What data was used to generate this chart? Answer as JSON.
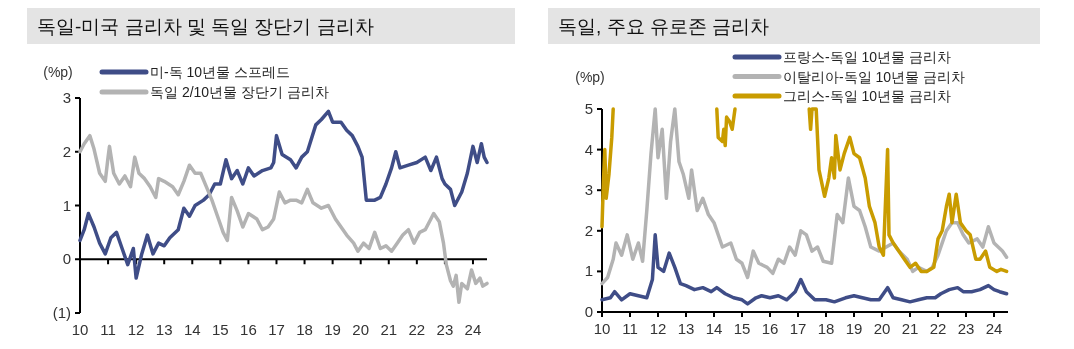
{
  "chart_data": [
    {
      "type": "line",
      "title": "독일-미국 금리차 및 독일 장단기 금리차",
      "ylabel": "(%p)",
      "legend": "top",
      "xlim": [
        2010,
        2024.5
      ],
      "xticks": [
        {
          "value": 2010,
          "label": "10"
        },
        {
          "value": 2011,
          "label": "11"
        },
        {
          "value": 2012,
          "label": "12"
        },
        {
          "value": 2013,
          "label": "13"
        },
        {
          "value": 2014,
          "label": "14"
        },
        {
          "value": 2015,
          "label": "15"
        },
        {
          "value": 2016,
          "label": "16"
        },
        {
          "value": 2017,
          "label": "17"
        },
        {
          "value": 2018,
          "label": "18"
        },
        {
          "value": 2019,
          "label": "19"
        },
        {
          "value": 2020,
          "label": "20"
        },
        {
          "value": 2021,
          "label": "21"
        },
        {
          "value": 2022,
          "label": "22"
        },
        {
          "value": 2023,
          "label": "23"
        },
        {
          "value": 2024,
          "label": "24"
        }
      ],
      "ylim": [
        -1,
        3
      ],
      "yticks": [
        {
          "value": -1,
          "label": "(1)"
        },
        0,
        1,
        2,
        3
      ],
      "series": [
        {
          "name": "미-독 10년물 스프레드",
          "color": "#3f4d87",
          "x": [
            2010.0,
            2010.15,
            2010.3,
            2010.5,
            2010.7,
            2010.9,
            2011.1,
            2011.3,
            2011.5,
            2011.7,
            2011.9,
            2012.0,
            2012.2,
            2012.4,
            2012.6,
            2012.8,
            2013.0,
            2013.2,
            2013.5,
            2013.7,
            2013.9,
            2014.1,
            2014.4,
            2014.6,
            2014.8,
            2015.0,
            2015.2,
            2015.4,
            2015.6,
            2015.8,
            2016.0,
            2016.2,
            2016.5,
            2016.8,
            2016.9,
            2017.0,
            2017.2,
            2017.5,
            2017.7,
            2017.9,
            2018.1,
            2018.4,
            2018.6,
            2018.85,
            2019.0,
            2019.3,
            2019.5,
            2019.7,
            2019.9,
            2020.05,
            2020.2,
            2020.5,
            2020.7,
            2020.9,
            2021.1,
            2021.25,
            2021.4,
            2021.7,
            2022.0,
            2022.3,
            2022.5,
            2022.7,
            2022.9,
            2023.0,
            2023.2,
            2023.35,
            2023.6,
            2023.8,
            2024.0,
            2024.15,
            2024.3,
            2024.4,
            2024.5
          ],
          "values": [
            0.35,
            0.55,
            0.85,
            0.6,
            0.3,
            0.1,
            0.4,
            0.5,
            0.2,
            -0.1,
            0.2,
            -0.35,
            0.1,
            0.45,
            0.1,
            0.3,
            0.25,
            0.4,
            0.55,
            0.95,
            0.8,
            1.0,
            1.1,
            1.2,
            1.4,
            1.4,
            1.85,
            1.5,
            1.65,
            1.4,
            1.7,
            1.55,
            1.65,
            1.7,
            1.8,
            2.3,
            1.95,
            1.85,
            1.7,
            1.9,
            2.0,
            2.5,
            2.6,
            2.75,
            2.55,
            2.55,
            2.4,
            2.3,
            2.1,
            1.9,
            1.1,
            1.1,
            1.15,
            1.4,
            1.7,
            2.0,
            1.7,
            1.75,
            1.8,
            1.9,
            1.65,
            1.9,
            1.5,
            1.4,
            1.3,
            1.0,
            1.25,
            1.6,
            2.1,
            1.8,
            2.15,
            1.9,
            1.8
          ]
        },
        {
          "name": "독일 2/10년물 장단기 금리차",
          "color": "#b3b3b3",
          "x": [
            2010.0,
            2010.15,
            2010.35,
            2010.5,
            2010.7,
            2010.9,
            2011.0,
            2011.05,
            2011.2,
            2011.4,
            2011.6,
            2011.8,
            2011.95,
            2012.1,
            2012.3,
            2012.5,
            2012.7,
            2012.8,
            2013.0,
            2013.3,
            2013.5,
            2013.7,
            2013.9,
            2014.1,
            2014.3,
            2014.5,
            2014.7,
            2014.9,
            2015.1,
            2015.25,
            2015.4,
            2015.6,
            2015.8,
            2016.0,
            2016.3,
            2016.5,
            2016.7,
            2016.9,
            2017.1,
            2017.3,
            2017.5,
            2017.7,
            2017.9,
            2018.1,
            2018.3,
            2018.6,
            2018.85,
            2019.1,
            2019.3,
            2019.5,
            2019.75,
            2019.9,
            2020.1,
            2020.3,
            2020.5,
            2020.7,
            2020.9,
            2021.1,
            2021.3,
            2021.5,
            2021.7,
            2021.9,
            2022.1,
            2022.3,
            2022.5,
            2022.6,
            2022.8,
            2022.95,
            2023.05,
            2023.2,
            2023.3,
            2023.4,
            2023.5,
            2023.6,
            2023.8,
            2023.95,
            2024.1,
            2024.25,
            2024.35,
            2024.5
          ],
          "values": [
            2.0,
            2.15,
            2.3,
            2.05,
            1.6,
            1.45,
            1.9,
            2.1,
            1.6,
            1.4,
            1.55,
            1.35,
            1.9,
            1.6,
            1.5,
            1.35,
            1.15,
            1.5,
            1.45,
            1.35,
            1.2,
            1.45,
            1.75,
            1.6,
            1.6,
            1.35,
            1.1,
            0.8,
            0.5,
            0.35,
            1.15,
            0.9,
            0.6,
            0.85,
            0.75,
            0.55,
            0.6,
            0.75,
            1.25,
            1.05,
            1.1,
            1.1,
            1.05,
            1.3,
            1.05,
            0.95,
            1.0,
            0.75,
            0.6,
            0.45,
            0.3,
            0.15,
            0.3,
            0.2,
            0.5,
            0.2,
            0.25,
            0.15,
            0.3,
            0.45,
            0.55,
            0.3,
            0.5,
            0.55,
            0.75,
            0.85,
            0.7,
            0.3,
            -0.1,
            -0.4,
            -0.5,
            -0.3,
            -0.8,
            -0.45,
            -0.55,
            -0.2,
            -0.45,
            -0.35,
            -0.5,
            -0.45
          ]
        }
      ]
    },
    {
      "type": "line",
      "title": "독일, 주요 유로존 금리차",
      "ylabel": "(%p)",
      "legend": "top right",
      "xlim": [
        2010,
        2024.5
      ],
      "xticks": [
        {
          "value": 2010,
          "label": "10"
        },
        {
          "value": 2011,
          "label": "11"
        },
        {
          "value": 2012,
          "label": "12"
        },
        {
          "value": 2013,
          "label": "13"
        },
        {
          "value": 2014,
          "label": "14"
        },
        {
          "value": 2015,
          "label": "15"
        },
        {
          "value": 2016,
          "label": "16"
        },
        {
          "value": 2017,
          "label": "17"
        },
        {
          "value": 2018,
          "label": "18"
        },
        {
          "value": 2019,
          "label": "19"
        },
        {
          "value": 2020,
          "label": "20"
        },
        {
          "value": 2021,
          "label": "21"
        },
        {
          "value": 2022,
          "label": "22"
        },
        {
          "value": 2023,
          "label": "23"
        },
        {
          "value": 2024,
          "label": "24"
        }
      ],
      "ylim": [
        0,
        5
      ],
      "yticks": [
        0,
        1,
        2,
        3,
        4,
        5
      ],
      "series": [
        {
          "name": "프랑스-독일 10년물 금리차",
          "color": "#3f4d87",
          "x": [
            2010.0,
            2010.3,
            2010.45,
            2010.7,
            2011.0,
            2011.3,
            2011.6,
            2011.8,
            2011.9,
            2012.0,
            2012.2,
            2012.4,
            2012.6,
            2012.8,
            2013.0,
            2013.3,
            2013.6,
            2013.9,
            2014.1,
            2014.4,
            2014.7,
            2015.0,
            2015.2,
            2015.5,
            2015.7,
            2016.0,
            2016.3,
            2016.6,
            2016.9,
            2017.1,
            2017.3,
            2017.6,
            2018.0,
            2018.3,
            2018.7,
            2019.0,
            2019.3,
            2019.6,
            2019.9,
            2020.2,
            2020.4,
            2020.7,
            2021.0,
            2021.3,
            2021.6,
            2021.9,
            2022.1,
            2022.4,
            2022.7,
            2022.9,
            2023.2,
            2023.5,
            2023.8,
            2024.0,
            2024.2,
            2024.45
          ],
          "values": [
            0.3,
            0.35,
            0.5,
            0.3,
            0.45,
            0.4,
            0.35,
            0.8,
            1.9,
            1.1,
            1.0,
            1.45,
            1.1,
            0.7,
            0.65,
            0.55,
            0.6,
            0.5,
            0.6,
            0.45,
            0.35,
            0.3,
            0.2,
            0.35,
            0.4,
            0.35,
            0.4,
            0.3,
            0.5,
            0.8,
            0.5,
            0.3,
            0.3,
            0.25,
            0.35,
            0.4,
            0.35,
            0.3,
            0.3,
            0.6,
            0.35,
            0.3,
            0.25,
            0.3,
            0.35,
            0.35,
            0.45,
            0.55,
            0.6,
            0.5,
            0.5,
            0.55,
            0.65,
            0.55,
            0.5,
            0.45
          ]
        },
        {
          "name": "이탈리아-독일 10년물 금리차",
          "color": "#b3b3b3",
          "x": [
            2010.0,
            2010.2,
            2010.4,
            2010.5,
            2010.7,
            2010.9,
            2011.1,
            2011.3,
            2011.45,
            2011.6,
            2011.75,
            2011.9,
            2012.0,
            2012.15,
            2012.3,
            2012.45,
            2012.6,
            2012.75,
            2012.9,
            2013.1,
            2013.2,
            2013.4,
            2013.6,
            2013.8,
            2014.0,
            2014.3,
            2014.6,
            2014.8,
            2015.0,
            2015.2,
            2015.4,
            2015.6,
            2015.9,
            2016.1,
            2016.3,
            2016.5,
            2016.7,
            2016.9,
            2017.1,
            2017.3,
            2017.5,
            2017.7,
            2017.9,
            2018.2,
            2018.4,
            2018.6,
            2018.8,
            2019.0,
            2019.2,
            2019.4,
            2019.6,
            2019.9,
            2020.4,
            2020.6,
            2020.9,
            2021.1,
            2021.3,
            2021.6,
            2021.8,
            2022.0,
            2022.3,
            2022.5,
            2022.7,
            2022.9,
            2023.1,
            2023.4,
            2023.6,
            2023.8,
            2024.0,
            2024.3,
            2024.45
          ],
          "values": [
            0.7,
            0.85,
            1.3,
            1.7,
            1.4,
            1.9,
            1.3,
            1.7,
            1.25,
            2.5,
            3.9,
            5.0,
            3.8,
            4.5,
            2.8,
            4.2,
            5.0,
            3.7,
            3.4,
            2.8,
            3.5,
            2.5,
            2.8,
            2.4,
            2.2,
            1.6,
            1.7,
            1.3,
            1.2,
            0.85,
            1.5,
            1.2,
            1.1,
            0.95,
            1.3,
            1.2,
            1.6,
            1.4,
            2.0,
            1.9,
            1.5,
            1.6,
            1.25,
            1.2,
            2.4,
            2.2,
            3.3,
            2.6,
            2.5,
            2.1,
            1.6,
            1.5,
            1.7,
            1.5,
            1.3,
            1.0,
            1.1,
            1.0,
            1.1,
            1.4,
            2.0,
            2.2,
            2.2,
            1.9,
            1.7,
            1.8,
            1.6,
            2.1,
            1.7,
            1.5,
            1.35
          ]
        },
        {
          "name": "그리스-독일 10년물 금리차",
          "color": "#c99c00",
          "x": [
            2010.0,
            2010.05,
            2010.1,
            2010.15,
            2010.25,
            2010.35,
            2010.4
          ],
          "values": [
            2.1,
            3.2,
            4.0,
            2.8,
            3.4,
            4.3,
            5.0
          ]
        },
        {
          "color": "#c99c00",
          "x": [
            2014.1,
            2014.15,
            2014.3,
            2014.35,
            2014.4,
            2014.45,
            2014.55,
            2014.65,
            2014.75
          ],
          "values": [
            5.0,
            4.3,
            4.2,
            4.5,
            4.1,
            4.8,
            4.7,
            4.5,
            5.0
          ]
        },
        {
          "color": "#c99c00",
          "x": [
            2017.4,
            2017.45,
            2017.5,
            2017.65,
            2017.75,
            2017.95,
            2018.1,
            2018.2,
            2018.3,
            2018.35,
            2018.5,
            2018.65,
            2018.85,
            2019.0,
            2019.2,
            2019.4,
            2019.55,
            2019.75,
            2019.9,
            2020.05,
            2020.2,
            2020.25,
            2020.4,
            2020.6,
            2020.8,
            2021.0,
            2021.2,
            2021.4,
            2021.6,
            2021.85,
            2022.0,
            2022.15,
            2022.3,
            2022.4,
            2022.5,
            2022.65,
            2022.8,
            2023.0,
            2023.15,
            2023.35,
            2023.5,
            2023.7,
            2023.85,
            2024.1,
            2024.25,
            2024.45
          ],
          "values": [
            5.0,
            4.5,
            5.0,
            5.0,
            3.5,
            2.85,
            3.3,
            3.8,
            3.3,
            4.35,
            3.5,
            3.9,
            4.3,
            3.9,
            3.8,
            3.3,
            2.6,
            2.2,
            1.6,
            1.4,
            4.0,
            1.9,
            1.7,
            1.5,
            1.3,
            1.1,
            1.2,
            1.0,
            1.0,
            1.1,
            1.8,
            2.0,
            2.6,
            2.9,
            2.2,
            2.9,
            2.2,
            2.0,
            1.9,
            1.3,
            1.3,
            1.5,
            1.1,
            1.0,
            1.05,
            1.0
          ]
        }
      ]
    }
  ]
}
